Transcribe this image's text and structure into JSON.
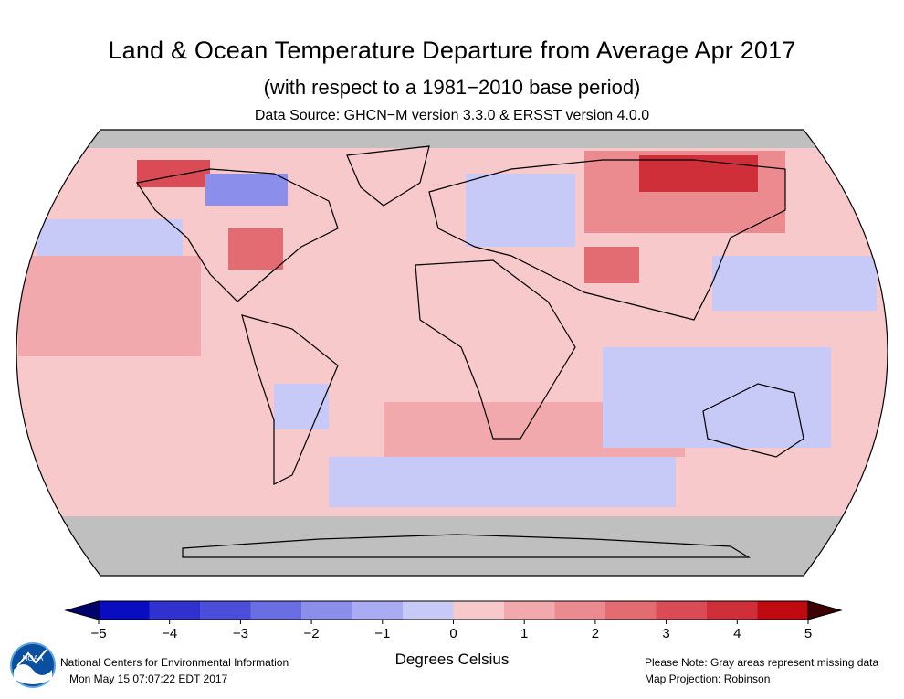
{
  "header": {
    "title": "Land & Ocean Temperature Departure from Average Apr 2017",
    "subtitle": "(with respect to a 1981−2010 base period)",
    "data_source": "Data Source: GHCN−M version 3.3.0 & ERSST version 4.0.0"
  },
  "legend": {
    "unit_label": "Degrees Celsius",
    "ticks": [
      "−5",
      "−4",
      "−3",
      "−2",
      "−1",
      "0",
      "1",
      "2",
      "3",
      "4",
      "5"
    ],
    "colors": [
      "#0a0cbf",
      "#2f32cf",
      "#4b4edb",
      "#6b6ee3",
      "#8b8eeb",
      "#a9acf2",
      "#c7c9f7",
      "#f7c9cb",
      "#f2a9ad",
      "#eb8b90",
      "#e36b72",
      "#db4b55",
      "#cf2f38",
      "#bf0a12"
    ],
    "low_end_color": "#02026e",
    "high_end_color": "#3d0000",
    "missing_color": "#bfbfbf"
  },
  "footer": {
    "org_name": "National Centers for Environmental Information",
    "timestamp": "Mon May 15 07:07:22 EDT 2017",
    "note": "Please Note: Gray areas represent missing data",
    "projection": "Map Projection: Robinson"
  },
  "logo": {
    "text": "NOAA"
  }
}
